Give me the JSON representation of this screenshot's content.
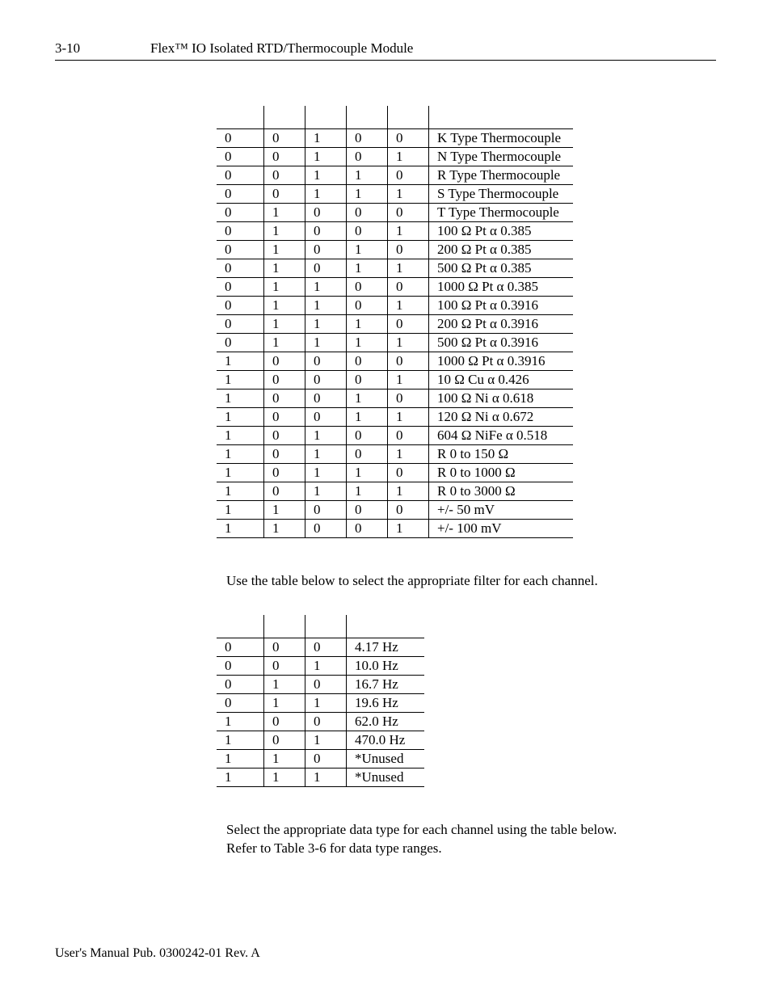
{
  "header": {
    "page_number": "3-10",
    "title": "Flex™ IO Isolated RTD/Thermocouple Module"
  },
  "sensor_table": {
    "rows": [
      [
        "0",
        "0",
        "1",
        "0",
        "0",
        "K Type Thermocouple"
      ],
      [
        "0",
        "0",
        "1",
        "0",
        "1",
        "N Type Thermocouple"
      ],
      [
        "0",
        "0",
        "1",
        "1",
        "0",
        "R Type Thermocouple"
      ],
      [
        "0",
        "0",
        "1",
        "1",
        "1",
        "S Type Thermocouple"
      ],
      [
        "0",
        "1",
        "0",
        "0",
        "0",
        "T Type Thermocouple"
      ],
      [
        "0",
        "1",
        "0",
        "0",
        "1",
        "100 Ω Pt α 0.385"
      ],
      [
        "0",
        "1",
        "0",
        "1",
        "0",
        "200 Ω Pt α 0.385"
      ],
      [
        "0",
        "1",
        "0",
        "1",
        "1",
        "500 Ω Pt α 0.385"
      ],
      [
        "0",
        "1",
        "1",
        "0",
        "0",
        "1000 Ω Pt α 0.385"
      ],
      [
        "0",
        "1",
        "1",
        "0",
        "1",
        "100 Ω Pt α 0.3916"
      ],
      [
        "0",
        "1",
        "1",
        "1",
        "0",
        "200 Ω Pt α 0.3916"
      ],
      [
        "0",
        "1",
        "1",
        "1",
        "1",
        "500 Ω Pt α 0.3916"
      ],
      [
        "1",
        "0",
        "0",
        "0",
        "0",
        "1000 Ω Pt α 0.3916"
      ],
      [
        "1",
        "0",
        "0",
        "0",
        "1",
        "10 Ω Cu α 0.426"
      ],
      [
        "1",
        "0",
        "0",
        "1",
        "0",
        "100 Ω Ni α 0.618"
      ],
      [
        "1",
        "0",
        "0",
        "1",
        "1",
        "120 Ω Ni α 0.672"
      ],
      [
        "1",
        "0",
        "1",
        "0",
        "0",
        "604 Ω NiFe α 0.518"
      ],
      [
        "1",
        "0",
        "1",
        "0",
        "1",
        "R 0 to 150 Ω"
      ],
      [
        "1",
        "0",
        "1",
        "1",
        "0",
        "R 0 to 1000 Ω"
      ],
      [
        "1",
        "0",
        "1",
        "1",
        "1",
        "R 0 to 3000 Ω"
      ],
      [
        "1",
        "1",
        "0",
        "0",
        "0",
        "+/- 50 mV"
      ],
      [
        "1",
        "1",
        "0",
        "0",
        "1",
        "+/- 100 mV"
      ]
    ]
  },
  "paragraph_filter": "Use the table below to select the appropriate filter for each channel.",
  "filter_table": {
    "rows": [
      [
        "0",
        "0",
        "0",
        "4.17 Hz"
      ],
      [
        "0",
        "0",
        "1",
        "10.0 Hz"
      ],
      [
        "0",
        "1",
        "0",
        "16.7 Hz"
      ],
      [
        "0",
        "1",
        "1",
        "19.6 Hz"
      ],
      [
        "1",
        "0",
        "0",
        "62.0 Hz"
      ],
      [
        "1",
        "0",
        "1",
        "470.0 Hz"
      ],
      [
        "1",
        "1",
        "0",
        "*Unused"
      ],
      [
        "1",
        "1",
        "1",
        "*Unused"
      ]
    ]
  },
  "paragraph_datatype": "Select the appropriate data type for each channel using the table below.  Refer to Table 3-6 for data type ranges.",
  "footer": "User's Manual Pub. 0300242-01 Rev. A"
}
